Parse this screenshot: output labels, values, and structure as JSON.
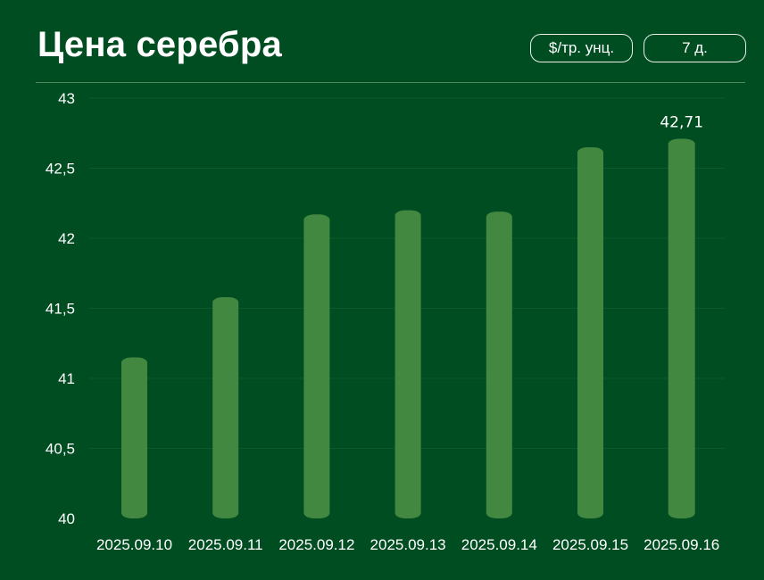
{
  "header": {
    "title": "Цена серебра",
    "unit_label": "$/тр. унц.",
    "range_label": "7 д."
  },
  "colors": {
    "background": "#004d22",
    "bar": "#438841",
    "grid": "#0b5a2b",
    "divider": "#4f8a5c"
  },
  "chart_data": {
    "type": "bar",
    "title": "Цена серебра",
    "categories": [
      "2025.09.10",
      "2025.09.11",
      "2025.09.12",
      "2025.09.13",
      "2025.09.14",
      "2025.09.15",
      "2025.09.16"
    ],
    "series": [
      {
        "values": [
          41.15,
          41.58,
          42.17,
          42.2,
          42.19,
          42.65,
          42.71
        ]
      }
    ],
    "y_ticks": [
      "40",
      "40,5",
      "41",
      "41,5",
      "42",
      "42,5",
      "43"
    ],
    "ylim": [
      40,
      43
    ],
    "data_labels": [
      {
        "index": 6,
        "text": "42,71"
      }
    ],
    "grid": true,
    "legend": "none"
  }
}
